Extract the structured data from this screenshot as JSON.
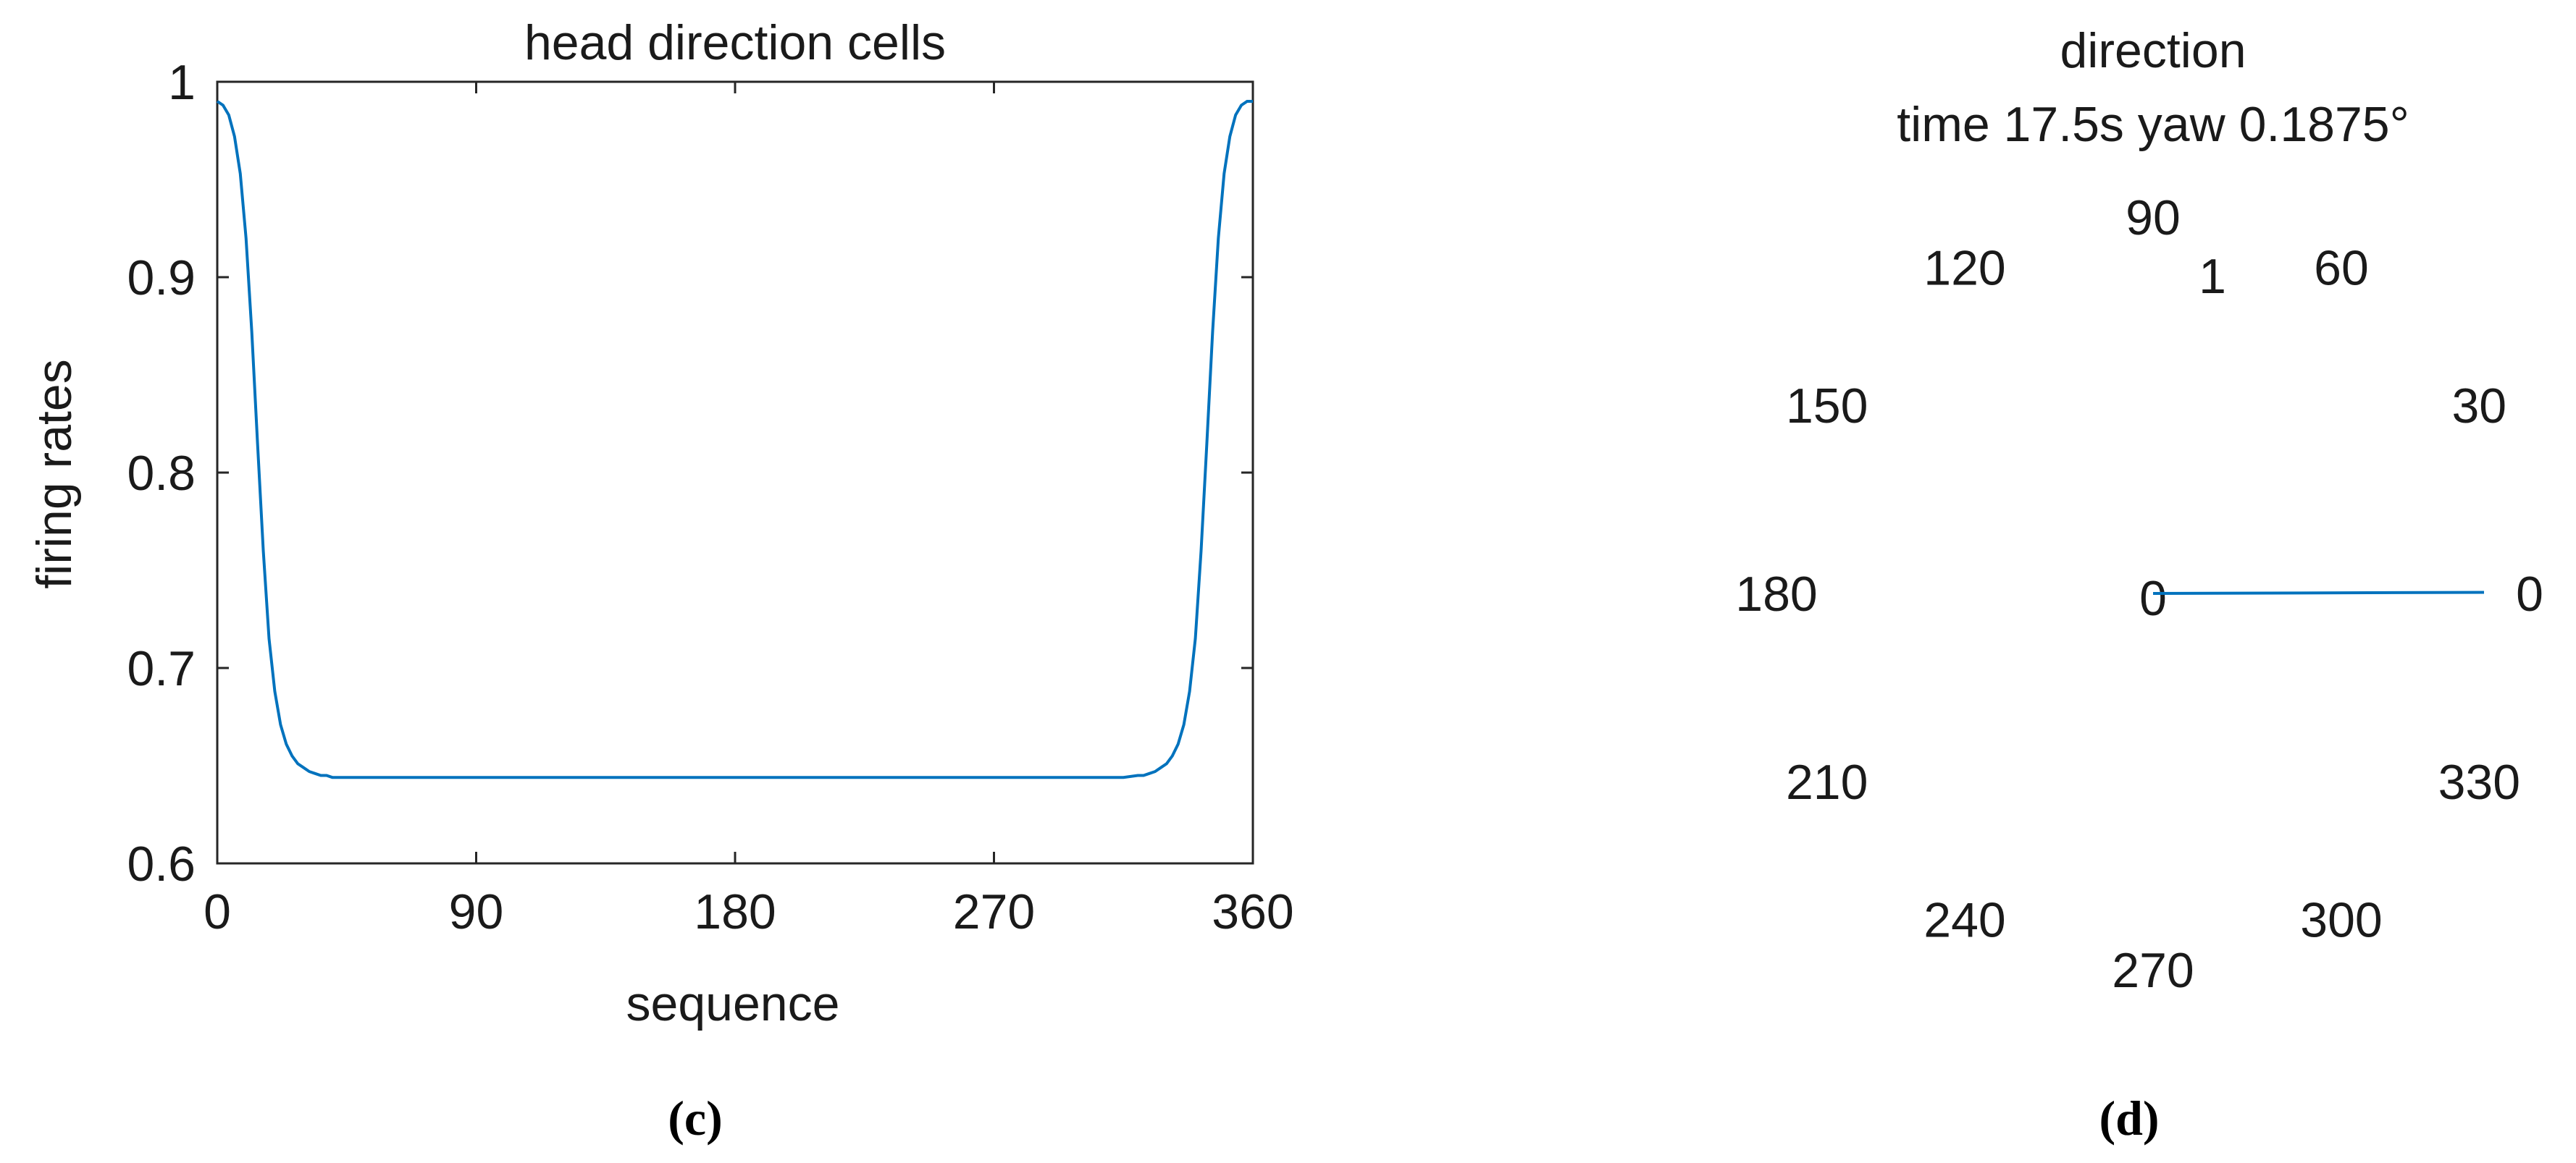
{
  "chart_data": [
    {
      "panel": "(c)",
      "type": "line",
      "title": "head direction cells",
      "xlabel": "sequence",
      "ylabel": "firing rates",
      "xlim": [
        0,
        360
      ],
      "ylim": [
        0.6,
        1
      ],
      "xticks": [
        0,
        90,
        180,
        270,
        360
      ],
      "xtick_labels": [
        "0",
        "90",
        "180",
        "270",
        "360"
      ],
      "yticks": [
        0.6,
        0.7,
        0.8,
        0.9,
        1
      ],
      "ytick_labels": [
        "0.6",
        "0.7",
        "0.8",
        "0.9",
        "1"
      ],
      "grid": false,
      "color": "#0072BD",
      "series": [
        {
          "x": [
            0,
            2,
            4,
            6,
            8,
            10,
            12,
            14,
            16,
            18,
            20,
            22,
            24,
            26,
            28,
            30,
            32,
            34,
            36,
            38,
            40,
            45,
            50,
            90,
            180,
            270,
            310,
            315,
            320,
            322,
            324,
            326,
            328,
            330,
            332,
            334,
            336,
            338,
            340,
            342,
            344,
            346,
            348,
            350,
            352,
            354,
            356,
            358,
            360
          ],
          "y": [
            0.99,
            0.988,
            0.983,
            0.972,
            0.953,
            0.92,
            0.872,
            0.815,
            0.76,
            0.715,
            0.688,
            0.671,
            0.661,
            0.655,
            0.651,
            0.649,
            0.647,
            0.646,
            0.645,
            0.645,
            0.644,
            0.644,
            0.644,
            0.644,
            0.644,
            0.644,
            0.644,
            0.644,
            0.645,
            0.645,
            0.646,
            0.647,
            0.649,
            0.651,
            0.655,
            0.661,
            0.671,
            0.688,
            0.715,
            0.76,
            0.815,
            0.872,
            0.92,
            0.953,
            0.972,
            0.983,
            0.988,
            0.99,
            0.99
          ]
        }
      ]
    },
    {
      "panel": "(d)",
      "type": "polar",
      "title_lines": [
        "direction",
        "time 17.5s  yaw 0.1875°"
      ],
      "angle_labels": [
        "0",
        "30",
        "60",
        "90",
        "120",
        "150",
        "180",
        "210",
        "240",
        "270",
        "300",
        "330"
      ],
      "radial_tick_labels": [
        "1",
        "0"
      ],
      "color": "#0072BD",
      "series": [
        {
          "theta_deg": [
            0.1875,
            0.1875
          ],
          "r": [
            0,
            1
          ]
        }
      ]
    }
  ],
  "captions": {
    "left": "(c)",
    "right": "(d)"
  }
}
